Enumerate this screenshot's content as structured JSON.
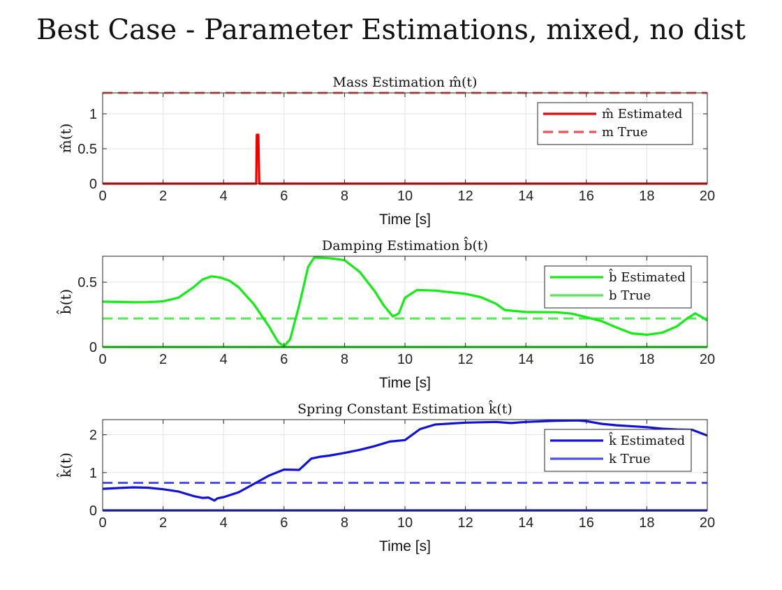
{
  "suptitle": "Best Case - Parameter Estimations, mixed, no dist",
  "colors": {
    "red": "#ee0000",
    "red_true": "#f05050",
    "green": "#11ee11",
    "green_true": "#55e855",
    "blue": "#1111dd",
    "blue_true": "#4d4df0",
    "grid": "#e3e3e3",
    "axis": "#262626"
  },
  "chart_data": [
    {
      "type": "line",
      "title": "Mass Estimation m̂(t)",
      "xlabel": "Time [s]",
      "ylabel": "m̂(t)",
      "xlim": [
        0,
        20
      ],
      "ylim": [
        0,
        1.3
      ],
      "xticks": [
        "0",
        "2",
        "4",
        "6",
        "8",
        "10",
        "12",
        "14",
        "16",
        "18",
        "20"
      ],
      "yticks": [
        "0",
        "0.5",
        "1"
      ],
      "grid": true,
      "legend_position": "top-right",
      "series": [
        {
          "name": "m̂ Estimated",
          "style": "solid",
          "color": "#ee0000",
          "x": [
            0,
            5.08,
            5.1,
            5.15,
            5.18,
            20
          ],
          "y": [
            0,
            0,
            0.7,
            0.7,
            0,
            0
          ]
        },
        {
          "name": "m True",
          "style": "dashed",
          "color": "#f05050",
          "x": [
            0,
            20
          ],
          "y": [
            1.3,
            1.3
          ]
        }
      ]
    },
    {
      "type": "line",
      "title": "Damping Estimation b̂(t)",
      "xlabel": "Time [s]",
      "ylabel": "b̂(t)",
      "xlim": [
        0,
        20
      ],
      "ylim": [
        0,
        0.7
      ],
      "xticks": [
        "0",
        "2",
        "4",
        "6",
        "8",
        "10",
        "12",
        "14",
        "16",
        "18",
        "20"
      ],
      "yticks": [
        "0",
        "0.5"
      ],
      "grid": true,
      "legend_position": "top-right",
      "series": [
        {
          "name": "b̂ Estimated",
          "style": "solid",
          "color": "#11ee11",
          "x": [
            0,
            0.5,
            1,
            1.5,
            2,
            2.5,
            3,
            3.3,
            3.6,
            3.9,
            4.2,
            4.5,
            5,
            5.5,
            5.8,
            6,
            6.2,
            6.5,
            6.8,
            7,
            7.5,
            8,
            8.5,
            9,
            9.3,
            9.6,
            9.8,
            10,
            10.4,
            11,
            12,
            12.5,
            13,
            13.3,
            14,
            15,
            15.5,
            16,
            16.5,
            17,
            17.5,
            18,
            18.5,
            19,
            19.3,
            19.6,
            20
          ],
          "y": [
            0.35,
            0.348,
            0.345,
            0.346,
            0.352,
            0.38,
            0.46,
            0.52,
            0.545,
            0.535,
            0.51,
            0.46,
            0.33,
            0.16,
            0.04,
            0.005,
            0.06,
            0.32,
            0.62,
            0.69,
            0.685,
            0.67,
            0.58,
            0.43,
            0.32,
            0.235,
            0.26,
            0.38,
            0.44,
            0.435,
            0.41,
            0.385,
            0.335,
            0.285,
            0.27,
            0.268,
            0.258,
            0.23,
            0.2,
            0.15,
            0.105,
            0.095,
            0.11,
            0.16,
            0.215,
            0.26,
            0.205
          ]
        },
        {
          "name": "b True",
          "style": "dashed",
          "color": "#55e855",
          "x": [
            0,
            20
          ],
          "y": [
            0.22,
            0.22
          ]
        },
        {
          "name": "",
          "style": "solid",
          "color": "#11ee11",
          "x": [
            0,
            20
          ],
          "y": [
            0,
            0
          ]
        }
      ]
    },
    {
      "type": "line",
      "title": "Spring Constant Estimation k̂(t)",
      "xlabel": "Time [s]",
      "ylabel": "k̂(t)",
      "xlim": [
        0,
        20
      ],
      "ylim": [
        0,
        2.4
      ],
      "xticks": [
        "0",
        "2",
        "4",
        "6",
        "8",
        "10",
        "12",
        "14",
        "16",
        "18",
        "20"
      ],
      "yticks": [
        "0",
        "1",
        "2"
      ],
      "grid": true,
      "legend_position": "top-right",
      "series": [
        {
          "name": "k̂ Estimated",
          "style": "solid",
          "color": "#1111dd",
          "x": [
            0,
            0.5,
            1,
            1.5,
            2,
            2.5,
            3,
            3.3,
            3.5,
            3.7,
            3.8,
            4,
            4.5,
            5,
            5.5,
            6,
            6.5,
            6.7,
            6.9,
            7.2,
            7.5,
            8,
            8.5,
            9,
            9.5,
            10,
            10.5,
            11,
            12,
            13,
            13.5,
            14,
            15,
            15.7,
            16,
            16.5,
            17,
            18,
            18.5,
            19,
            19.5,
            20
          ],
          "y": [
            0.57,
            0.59,
            0.61,
            0.6,
            0.56,
            0.5,
            0.38,
            0.33,
            0.34,
            0.26,
            0.32,
            0.35,
            0.48,
            0.7,
            0.92,
            1.08,
            1.07,
            1.22,
            1.37,
            1.42,
            1.45,
            1.52,
            1.6,
            1.7,
            1.82,
            1.86,
            2.15,
            2.27,
            2.32,
            2.34,
            2.31,
            2.34,
            2.37,
            2.38,
            2.36,
            2.29,
            2.25,
            2.2,
            2.16,
            2.14,
            2.13,
            1.98
          ]
        },
        {
          "name": "k True",
          "style": "dashed",
          "color": "#4d4df0",
          "x": [
            0,
            20
          ],
          "y": [
            0.73,
            0.73
          ]
        },
        {
          "name": "",
          "style": "solid",
          "color": "#1111dd",
          "x": [
            0,
            20
          ],
          "y": [
            0,
            0
          ]
        }
      ]
    }
  ]
}
